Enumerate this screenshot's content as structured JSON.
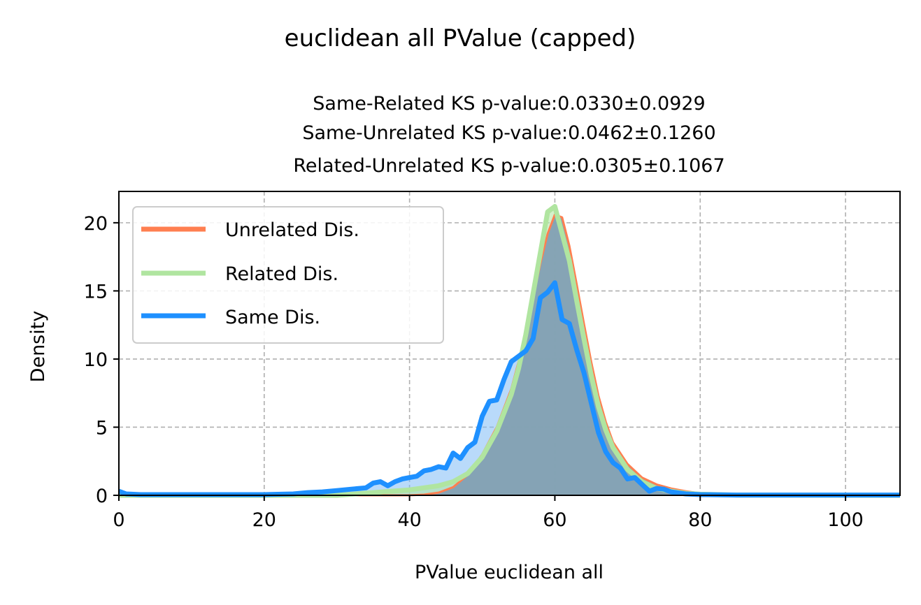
{
  "chart_data": {
    "type": "area",
    "title": "euclidean all PValue (capped)",
    "subtitle_lines": [
      "Same-Related KS p-value:0.0330±0.0929",
      "Same-Unrelated KS p-value:0.0462±0.1260",
      "Related-Unrelated KS p-value:0.0305±0.1067"
    ],
    "xlabel": "PValue euclidean all",
    "ylabel": "Density",
    "xlim": [
      0,
      107.5
    ],
    "ylim": [
      0,
      22.3
    ],
    "xticks": [
      0,
      20,
      40,
      60,
      80,
      100
    ],
    "yticks": [
      0,
      5,
      10,
      15,
      20
    ],
    "grid": true,
    "legend_position": "upper-left",
    "series": [
      {
        "name": "Unrelated Dis.",
        "color": "#ff7f50",
        "fill": "#c8a87a",
        "x": [
          0,
          40,
          42,
          44,
          46,
          48,
          50,
          52,
          54,
          55,
          56,
          57,
          58,
          59,
          60,
          61,
          62,
          63,
          64,
          65,
          66,
          67,
          68,
          70,
          72,
          74,
          76,
          78,
          80,
          85,
          90,
          107.5
        ],
        "y": [
          0,
          0,
          0.05,
          0.2,
          0.6,
          1.5,
          3.0,
          5.0,
          7.8,
          9.8,
          12.0,
          14.5,
          17.0,
          19.2,
          20.6,
          20.4,
          18.3,
          15.5,
          12.6,
          9.8,
          7.3,
          5.4,
          3.9,
          2.3,
          1.3,
          0.8,
          0.5,
          0.3,
          0.15,
          0.05,
          0.02,
          0
        ]
      },
      {
        "name": "Related Dis.",
        "color": "#b0e5a0",
        "fill": "#b0e5a0",
        "x": [
          0,
          30,
          35,
          40,
          44,
          46,
          48,
          50,
          52,
          54,
          55,
          56,
          57,
          58,
          59,
          60,
          61,
          62,
          63,
          64,
          65,
          66,
          67,
          68,
          70,
          72,
          74,
          76,
          78,
          80,
          85,
          107.5
        ],
        "y": [
          0,
          0,
          0.2,
          0.4,
          0.7,
          1.0,
          1.6,
          2.8,
          4.7,
          7.4,
          9.3,
          11.8,
          14.8,
          17.8,
          20.8,
          21.2,
          19.2,
          17.2,
          14.3,
          11.5,
          8.8,
          6.5,
          4.8,
          3.5,
          1.9,
          1.0,
          0.5,
          0.3,
          0.15,
          0.08,
          0.02,
          0
        ]
      },
      {
        "name": "Same Dis.",
        "color": "#1e90ff",
        "fill": "#7fbbf5",
        "x": [
          0,
          1,
          3,
          5,
          8,
          10,
          15,
          20,
          24,
          26,
          28,
          30,
          32,
          34,
          35,
          36,
          37,
          38,
          39,
          40,
          41,
          42,
          43,
          44,
          45,
          46,
          47,
          48,
          49,
          50,
          51,
          52,
          53,
          54,
          55,
          56,
          57,
          58,
          59,
          60,
          61,
          62,
          63,
          64,
          65,
          66,
          67,
          68,
          69,
          70,
          71,
          72,
          73,
          74,
          75,
          76,
          78,
          80,
          85,
          90,
          107.5
        ],
        "y": [
          0.3,
          0.1,
          0.05,
          0.05,
          0.05,
          0.05,
          0.05,
          0.05,
          0.1,
          0.2,
          0.25,
          0.35,
          0.45,
          0.55,
          0.9,
          1.0,
          0.7,
          1.0,
          1.2,
          1.3,
          1.4,
          1.8,
          1.9,
          2.1,
          2.0,
          3.1,
          2.7,
          3.5,
          3.9,
          5.8,
          6.9,
          7.0,
          8.5,
          9.8,
          10.2,
          10.6,
          11.5,
          14.5,
          14.9,
          15.6,
          12.9,
          12.6,
          10.7,
          9.0,
          6.8,
          4.6,
          3.2,
          2.4,
          2.0,
          1.2,
          1.3,
          0.8,
          0.3,
          0.5,
          0.45,
          0.25,
          0.1,
          0.05,
          0.02,
          0.02,
          0.02
        ]
      }
    ]
  }
}
